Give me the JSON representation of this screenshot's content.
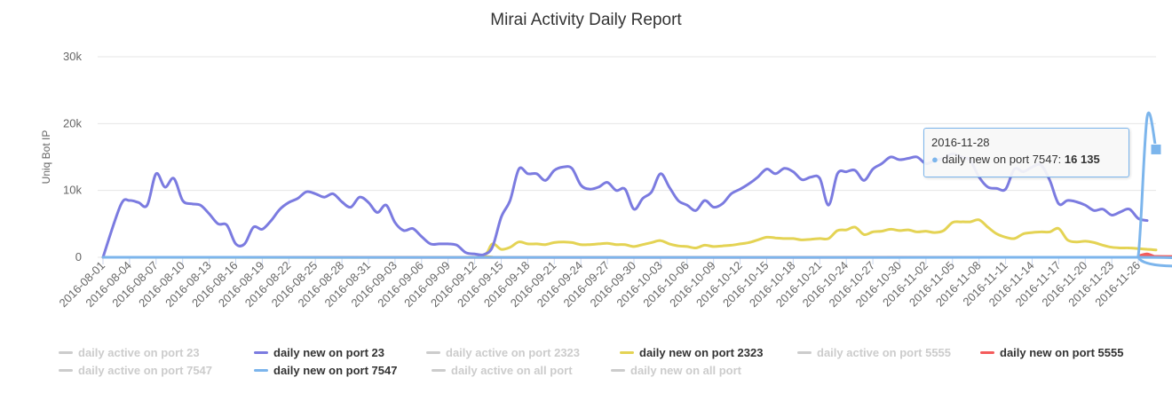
{
  "chart_data": {
    "type": "line",
    "title": "Mirai Activity Daily Report",
    "ylabel": "Uniq Bot IP",
    "ylim": [
      0,
      30000
    ],
    "yticks": [
      0,
      10000,
      20000,
      30000
    ],
    "ytick_labels": [
      "0",
      "10k",
      "20k",
      "30k"
    ],
    "x_start": "2016-08-01",
    "x_end": "2016-11-28",
    "xtick_labels": [
      "2016-08-01",
      "2016-08-04",
      "2016-08-07",
      "2016-08-10",
      "2016-08-13",
      "2016-08-16",
      "2016-08-19",
      "2016-08-22",
      "2016-08-25",
      "2016-08-28",
      "2016-08-31",
      "2016-09-03",
      "2016-09-06",
      "2016-09-09",
      "2016-09-12",
      "2016-09-15",
      "2016-09-18",
      "2016-09-21",
      "2016-09-24",
      "2016-09-27",
      "2016-09-30",
      "2016-10-03",
      "2016-10-06",
      "2016-10-09",
      "2016-10-12",
      "2016-10-15",
      "2016-10-18",
      "2016-10-21",
      "2016-10-24",
      "2016-10-27",
      "2016-10-30",
      "2016-11-02",
      "2016-11-05",
      "2016-11-08",
      "2016-11-11",
      "2016-11-14",
      "2016-11-17",
      "2016-11-20",
      "2016-11-23",
      "2016-11-26"
    ],
    "grid": true,
    "legend_position": "bottom",
    "series": [
      {
        "name": "daily active on port 23",
        "visible": false,
        "color": "#cccccc",
        "values": []
      },
      {
        "name": "daily new on port 23",
        "visible": true,
        "color": "#7b7be0",
        "values": [
          [
            "2016-08-01",
            0
          ],
          [
            "2016-08-03",
            7800
          ],
          [
            "2016-08-04",
            8500
          ],
          [
            "2016-08-05",
            8200
          ],
          [
            "2016-08-06",
            7800
          ],
          [
            "2016-08-07",
            12500
          ],
          [
            "2016-08-08",
            10500
          ],
          [
            "2016-08-09",
            11800
          ],
          [
            "2016-08-10",
            8500
          ],
          [
            "2016-08-11",
            8000
          ],
          [
            "2016-08-12",
            7800
          ],
          [
            "2016-08-13",
            6500
          ],
          [
            "2016-08-14",
            5000
          ],
          [
            "2016-08-15",
            4800
          ],
          [
            "2016-08-16",
            2000
          ],
          [
            "2016-08-17",
            2000
          ],
          [
            "2016-08-18",
            4500
          ],
          [
            "2016-08-19",
            4200
          ],
          [
            "2016-08-20",
            5500
          ],
          [
            "2016-08-21",
            7200
          ],
          [
            "2016-08-22",
            8200
          ],
          [
            "2016-08-23",
            8800
          ],
          [
            "2016-08-24",
            9800
          ],
          [
            "2016-08-25",
            9500
          ],
          [
            "2016-08-26",
            9000
          ],
          [
            "2016-08-27",
            9500
          ],
          [
            "2016-08-28",
            8300
          ],
          [
            "2016-08-29",
            7500
          ],
          [
            "2016-08-30",
            9000
          ],
          [
            "2016-08-31",
            8200
          ],
          [
            "2016-09-01",
            6700
          ],
          [
            "2016-09-02",
            7800
          ],
          [
            "2016-09-03",
            5200
          ],
          [
            "2016-09-04",
            4000
          ],
          [
            "2016-09-05",
            4300
          ],
          [
            "2016-09-06",
            3100
          ],
          [
            "2016-09-07",
            2000
          ],
          [
            "2016-09-08",
            2000
          ],
          [
            "2016-09-09",
            2000
          ],
          [
            "2016-09-10",
            1800
          ],
          [
            "2016-09-11",
            700
          ],
          [
            "2016-09-12",
            500
          ],
          [
            "2016-09-13",
            400
          ],
          [
            "2016-09-14",
            1500
          ],
          [
            "2016-09-15",
            6000
          ],
          [
            "2016-09-16",
            8500
          ],
          [
            "2016-09-17",
            13200
          ],
          [
            "2016-09-18",
            12500
          ],
          [
            "2016-09-19",
            12500
          ],
          [
            "2016-09-20",
            11500
          ],
          [
            "2016-09-21",
            13000
          ],
          [
            "2016-09-22",
            13500
          ],
          [
            "2016-09-23",
            13300
          ],
          [
            "2016-09-24",
            10800
          ],
          [
            "2016-09-25",
            10200
          ],
          [
            "2016-09-26",
            10500
          ],
          [
            "2016-09-27",
            11200
          ],
          [
            "2016-09-28",
            10000
          ],
          [
            "2016-09-29",
            10200
          ],
          [
            "2016-09-30",
            7200
          ],
          [
            "2016-10-01",
            8800
          ],
          [
            "2016-10-02",
            9800
          ],
          [
            "2016-10-03",
            12500
          ],
          [
            "2016-10-04",
            10500
          ],
          [
            "2016-10-05",
            8500
          ],
          [
            "2016-10-06",
            7800
          ],
          [
            "2016-10-07",
            7000
          ],
          [
            "2016-10-08",
            8500
          ],
          [
            "2016-10-09",
            7500
          ],
          [
            "2016-10-10",
            8000
          ],
          [
            "2016-10-11",
            9500
          ],
          [
            "2016-10-12",
            10200
          ],
          [
            "2016-10-13",
            11000
          ],
          [
            "2016-10-14",
            12000
          ],
          [
            "2016-10-15",
            13200
          ],
          [
            "2016-10-16",
            12500
          ],
          [
            "2016-10-17",
            13300
          ],
          [
            "2016-10-18",
            12800
          ],
          [
            "2016-10-19",
            11600
          ],
          [
            "2016-10-20",
            12000
          ],
          [
            "2016-10-21",
            11800
          ],
          [
            "2016-10-22",
            7800
          ],
          [
            "2016-10-23",
            12500
          ],
          [
            "2016-10-24",
            12800
          ],
          [
            "2016-10-25",
            13000
          ],
          [
            "2016-10-26",
            11500
          ],
          [
            "2016-10-27",
            13200
          ],
          [
            "2016-10-28",
            14000
          ],
          [
            "2016-10-29",
            15000
          ],
          [
            "2016-10-30",
            14600
          ],
          [
            "2016-10-31",
            14800
          ],
          [
            "2016-11-01",
            15000
          ],
          [
            "2016-11-02",
            14000
          ],
          [
            "2016-11-03",
            14500
          ],
          [
            "2016-11-04",
            14800
          ],
          [
            "2016-11-05",
            15500
          ],
          [
            "2016-11-06",
            15000
          ],
          [
            "2016-11-07",
            14500
          ],
          [
            "2016-11-08",
            12000
          ],
          [
            "2016-11-09",
            10500
          ],
          [
            "2016-11-10",
            10300
          ],
          [
            "2016-11-11",
            10200
          ],
          [
            "2016-11-12",
            13200
          ],
          [
            "2016-11-13",
            12800
          ],
          [
            "2016-11-14",
            13500
          ],
          [
            "2016-11-15",
            13800
          ],
          [
            "2016-11-16",
            11500
          ],
          [
            "2016-11-17",
            8000
          ],
          [
            "2016-11-18",
            8500
          ],
          [
            "2016-11-19",
            8300
          ],
          [
            "2016-11-20",
            7800
          ],
          [
            "2016-11-21",
            7000
          ],
          [
            "2016-11-22",
            7200
          ],
          [
            "2016-11-23",
            6300
          ],
          [
            "2016-11-24",
            6800
          ],
          [
            "2016-11-25",
            7200
          ],
          [
            "2016-11-26",
            5800
          ],
          [
            "2016-11-27",
            5500
          ]
        ]
      },
      {
        "name": "daily active on port 2323",
        "visible": false,
        "color": "#cccccc",
        "values": []
      },
      {
        "name": "daily new on port 2323",
        "visible": true,
        "color": "#e4d354",
        "values": [
          [
            "2016-08-01",
            0
          ],
          [
            "2016-09-10",
            0
          ],
          [
            "2016-09-13",
            300
          ],
          [
            "2016-09-14",
            2000
          ],
          [
            "2016-09-15",
            1200
          ],
          [
            "2016-09-16",
            1500
          ],
          [
            "2016-09-17",
            2300
          ],
          [
            "2016-09-18",
            2000
          ],
          [
            "2016-09-19",
            2000
          ],
          [
            "2016-09-20",
            1900
          ],
          [
            "2016-09-21",
            2200
          ],
          [
            "2016-09-22",
            2300
          ],
          [
            "2016-09-23",
            2200
          ],
          [
            "2016-09-24",
            1900
          ],
          [
            "2016-09-25",
            1900
          ],
          [
            "2016-09-26",
            2000
          ],
          [
            "2016-09-27",
            2100
          ],
          [
            "2016-09-28",
            1900
          ],
          [
            "2016-09-29",
            1900
          ],
          [
            "2016-09-30",
            1600
          ],
          [
            "2016-10-01",
            1900
          ],
          [
            "2016-10-02",
            2200
          ],
          [
            "2016-10-03",
            2500
          ],
          [
            "2016-10-04",
            2000
          ],
          [
            "2016-10-05",
            1700
          ],
          [
            "2016-10-06",
            1600
          ],
          [
            "2016-10-07",
            1400
          ],
          [
            "2016-10-08",
            1800
          ],
          [
            "2016-10-09",
            1600
          ],
          [
            "2016-10-10",
            1700
          ],
          [
            "2016-10-11",
            1800
          ],
          [
            "2016-10-12",
            2000
          ],
          [
            "2016-10-13",
            2200
          ],
          [
            "2016-10-14",
            2600
          ],
          [
            "2016-10-15",
            3000
          ],
          [
            "2016-10-16",
            2900
          ],
          [
            "2016-10-17",
            2800
          ],
          [
            "2016-10-18",
            2800
          ],
          [
            "2016-10-19",
            2600
          ],
          [
            "2016-10-20",
            2700
          ],
          [
            "2016-10-21",
            2800
          ],
          [
            "2016-10-22",
            2800
          ],
          [
            "2016-10-23",
            4000
          ],
          [
            "2016-10-24",
            4100
          ],
          [
            "2016-10-25",
            4500
          ],
          [
            "2016-10-26",
            3400
          ],
          [
            "2016-10-27",
            3800
          ],
          [
            "2016-10-28",
            3900
          ],
          [
            "2016-10-29",
            4200
          ],
          [
            "2016-10-30",
            4000
          ],
          [
            "2016-10-31",
            4100
          ],
          [
            "2016-11-01",
            3800
          ],
          [
            "2016-11-02",
            3900
          ],
          [
            "2016-11-03",
            3700
          ],
          [
            "2016-11-04",
            4000
          ],
          [
            "2016-11-05",
            5200
          ],
          [
            "2016-11-06",
            5300
          ],
          [
            "2016-11-07",
            5300
          ],
          [
            "2016-11-08",
            5600
          ],
          [
            "2016-11-09",
            4500
          ],
          [
            "2016-11-10",
            3500
          ],
          [
            "2016-11-11",
            3000
          ],
          [
            "2016-11-12",
            2800
          ],
          [
            "2016-11-13",
            3500
          ],
          [
            "2016-11-14",
            3700
          ],
          [
            "2016-11-15",
            3800
          ],
          [
            "2016-11-16",
            3800
          ],
          [
            "2016-11-17",
            4300
          ],
          [
            "2016-11-18",
            2600
          ],
          [
            "2016-11-19",
            2300
          ],
          [
            "2016-11-20",
            2400
          ],
          [
            "2016-11-21",
            2200
          ],
          [
            "2016-11-22",
            1800
          ],
          [
            "2016-11-23",
            1500
          ],
          [
            "2016-11-24",
            1400
          ],
          [
            "2016-11-25",
            1400
          ],
          [
            "2016-11-26",
            1300
          ],
          [
            "2016-11-27",
            1200
          ],
          [
            "2016-11-28",
            1100
          ]
        ]
      },
      {
        "name": "daily active on port 5555",
        "visible": false,
        "color": "#cccccc",
        "values": []
      },
      {
        "name": "daily new on port 5555",
        "visible": true,
        "color": "#f45b5b",
        "values": [
          [
            "2016-08-01",
            0
          ],
          [
            "2016-11-25",
            0
          ],
          [
            "2016-11-26",
            200
          ],
          [
            "2016-11-27",
            500
          ],
          [
            "2016-11-28",
            0
          ]
        ]
      },
      {
        "name": "daily active on port 7547",
        "visible": false,
        "color": "#cccccc",
        "values": []
      },
      {
        "name": "daily new on port 7547",
        "visible": true,
        "color": "#7cb5ec",
        "values": [
          [
            "2016-08-01",
            0
          ],
          [
            "2016-11-25",
            0
          ],
          [
            "2016-11-26",
            300
          ],
          [
            "2016-11-27",
            21000
          ],
          [
            "2016-11-28",
            16135
          ]
        ]
      },
      {
        "name": "daily active on all port",
        "visible": false,
        "color": "#cccccc",
        "values": []
      },
      {
        "name": "daily new on all port",
        "visible": false,
        "color": "#cccccc",
        "values": []
      }
    ],
    "tooltip": {
      "date": "2016-11-28",
      "series": "daily new on port 7547",
      "value": "16 135"
    }
  }
}
